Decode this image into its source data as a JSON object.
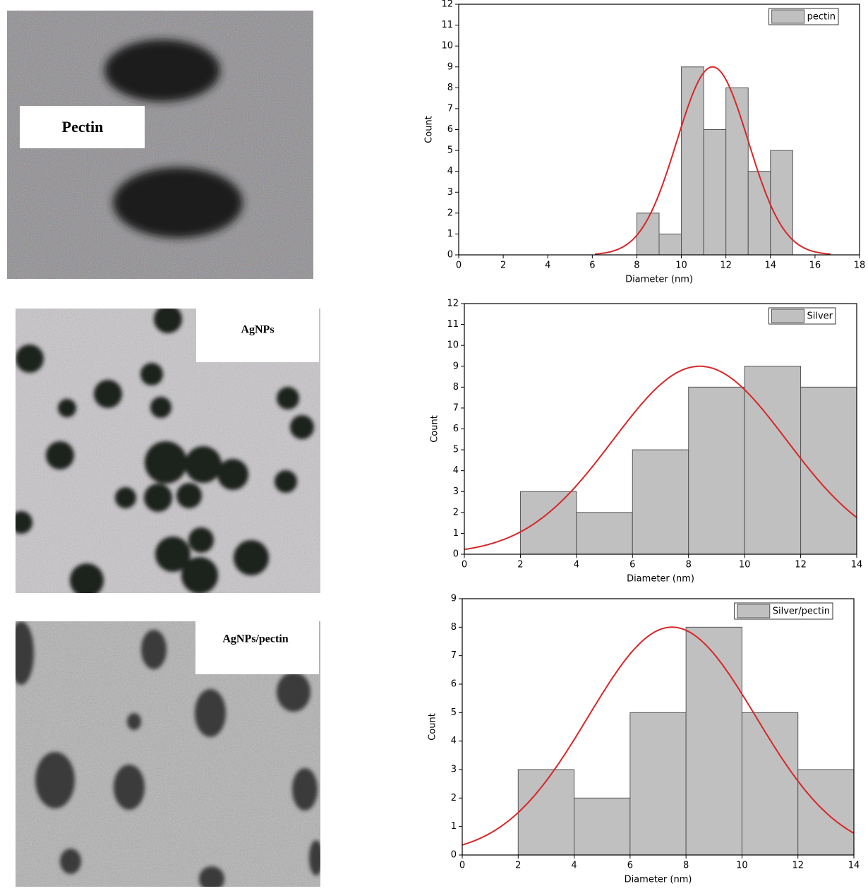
{
  "images": [
    {
      "label": "Pectin"
    },
    {
      "label": "AgNPs"
    },
    {
      "label": "AgNPs/pectin"
    }
  ],
  "chart_data": [
    {
      "type": "histogram",
      "xlabel": "Diameter (nm)",
      "ylabel": "Count",
      "bins": [
        8,
        9,
        10,
        11,
        12,
        13,
        14,
        15
      ],
      "series": [
        {
          "name": "pectin",
          "color": "#c0c0c0",
          "values": [
            2,
            1,
            9,
            6,
            8,
            4,
            5
          ]
        }
      ],
      "fit": {
        "color": "#d62728",
        "center": 11.4,
        "width": 1.6,
        "height": 9
      },
      "xlim": [
        0,
        18
      ],
      "xticks": [
        0,
        2,
        4,
        6,
        8,
        10,
        12,
        14,
        16,
        18
      ],
      "ylim": [
        0,
        12
      ],
      "yticks": [
        0,
        1,
        2,
        3,
        4,
        5,
        6,
        7,
        8,
        9,
        10,
        11,
        12
      ],
      "legend": "upper right"
    },
    {
      "type": "histogram",
      "xlabel": "Diameter (nm)",
      "ylabel": "Count",
      "bins": [
        2,
        4,
        6,
        8,
        10,
        12,
        14
      ],
      "series": [
        {
          "name": "Silver",
          "color": "#c0c0c0",
          "values": [
            3,
            2,
            5,
            8,
            9,
            8
          ]
        }
      ],
      "fit": {
        "color": "#d62728",
        "center": 8.4,
        "width": 3.1,
        "height": 9
      },
      "xlim": [
        0,
        14
      ],
      "xticks": [
        0,
        2,
        4,
        6,
        8,
        10,
        12,
        14
      ],
      "ylim": [
        0,
        12
      ],
      "yticks": [
        0,
        1,
        2,
        3,
        4,
        5,
        6,
        7,
        8,
        9,
        10,
        11,
        12
      ],
      "legend": "upper right"
    },
    {
      "type": "histogram",
      "xlabel": "Diameter (nm)",
      "ylabel": "Count",
      "bins": [
        2,
        4,
        6,
        8,
        10,
        12,
        14
      ],
      "series": [
        {
          "name": "Silver/pectin",
          "color": "#c0c0c0",
          "values": [
            3,
            2,
            5,
            8,
            5,
            3
          ]
        }
      ],
      "fit": {
        "color": "#d62728",
        "center": 7.5,
        "width": 3.0,
        "height": 8
      },
      "xlim": [
        0,
        14
      ],
      "xticks": [
        0,
        2,
        4,
        6,
        8,
        10,
        12,
        14
      ],
      "ylim": [
        0,
        9
      ],
      "yticks": [
        0,
        1,
        2,
        3,
        4,
        5,
        6,
        7,
        8,
        9
      ],
      "legend": "upper right"
    }
  ]
}
